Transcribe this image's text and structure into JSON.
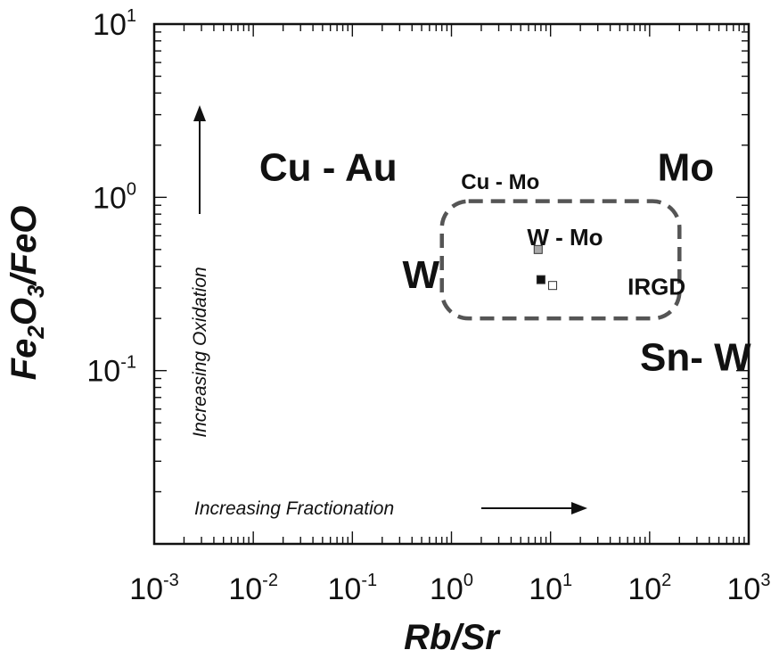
{
  "chart_data": {
    "type": "scatter",
    "xscale": "log",
    "yscale": "log",
    "xlim": [
      0.001,
      1000
    ],
    "ylim": [
      0.01,
      10
    ],
    "xlabel_base": "Rb/Sr",
    "ylabel": {
      "parts": [
        {
          "text": "Fe",
          "sub": false
        },
        {
          "text": "2",
          "sub": true
        },
        {
          "text": "O",
          "sub": false
        },
        {
          "text": "3",
          "sub": true
        },
        {
          "text": "/FeO",
          "sub": false
        }
      ]
    },
    "x_ticks": [
      {
        "base": "10",
        "exp": "-3",
        "value": 0.001
      },
      {
        "base": "10",
        "exp": "-2",
        "value": 0.01
      },
      {
        "base": "10",
        "exp": "-1",
        "value": 0.1
      },
      {
        "base": "10",
        "exp": "0",
        "value": 1
      },
      {
        "base": "10",
        "exp": "1",
        "value": 10
      },
      {
        "base": "10",
        "exp": "2",
        "value": 100
      },
      {
        "base": "10",
        "exp": "3",
        "value": 1000
      }
    ],
    "y_ticks": [
      {
        "base": "10",
        "exp": "1",
        "value": 10
      },
      {
        "base": "10",
        "exp": "0",
        "value": 1
      },
      {
        "base": "10",
        "exp": "-1",
        "value": 0.1
      }
    ],
    "field_labels": [
      {
        "text": "Cu - Au",
        "x": 0.0115,
        "y": 1.25,
        "size": "large"
      },
      {
        "text": "Cu - Mo",
        "x": 1.25,
        "y": 1.12,
        "size": "small"
      },
      {
        "text": "Mo",
        "x": 120,
        "y": 1.25,
        "size": "large"
      },
      {
        "text": "W - Mo",
        "x": 5.8,
        "y": 0.53,
        "size": "medium"
      },
      {
        "text": "W",
        "x": 0.32,
        "y": 0.3,
        "size": "large"
      },
      {
        "text": "IRGD",
        "x": 60,
        "y": 0.275,
        "size": "medium"
      },
      {
        "text": "Sn- W",
        "x": 80,
        "y": 0.1,
        "size": "large"
      }
    ],
    "points": [
      {
        "x": 7.5,
        "y": 0.5,
        "color": "#aaaaaa"
      },
      {
        "x": 8.0,
        "y": 0.335,
        "color": "#111111"
      },
      {
        "x": 10.5,
        "y": 0.31,
        "color": "#ffffff"
      }
    ],
    "region": {
      "label": "IRGD",
      "x": [
        0.8,
        200
      ],
      "y": [
        0.2,
        0.95
      ],
      "style": "dashed",
      "color": "#555555"
    },
    "annotations": {
      "oxidation": "Increasing Oxidation",
      "fractionation": "Increasing Fractionation"
    }
  }
}
